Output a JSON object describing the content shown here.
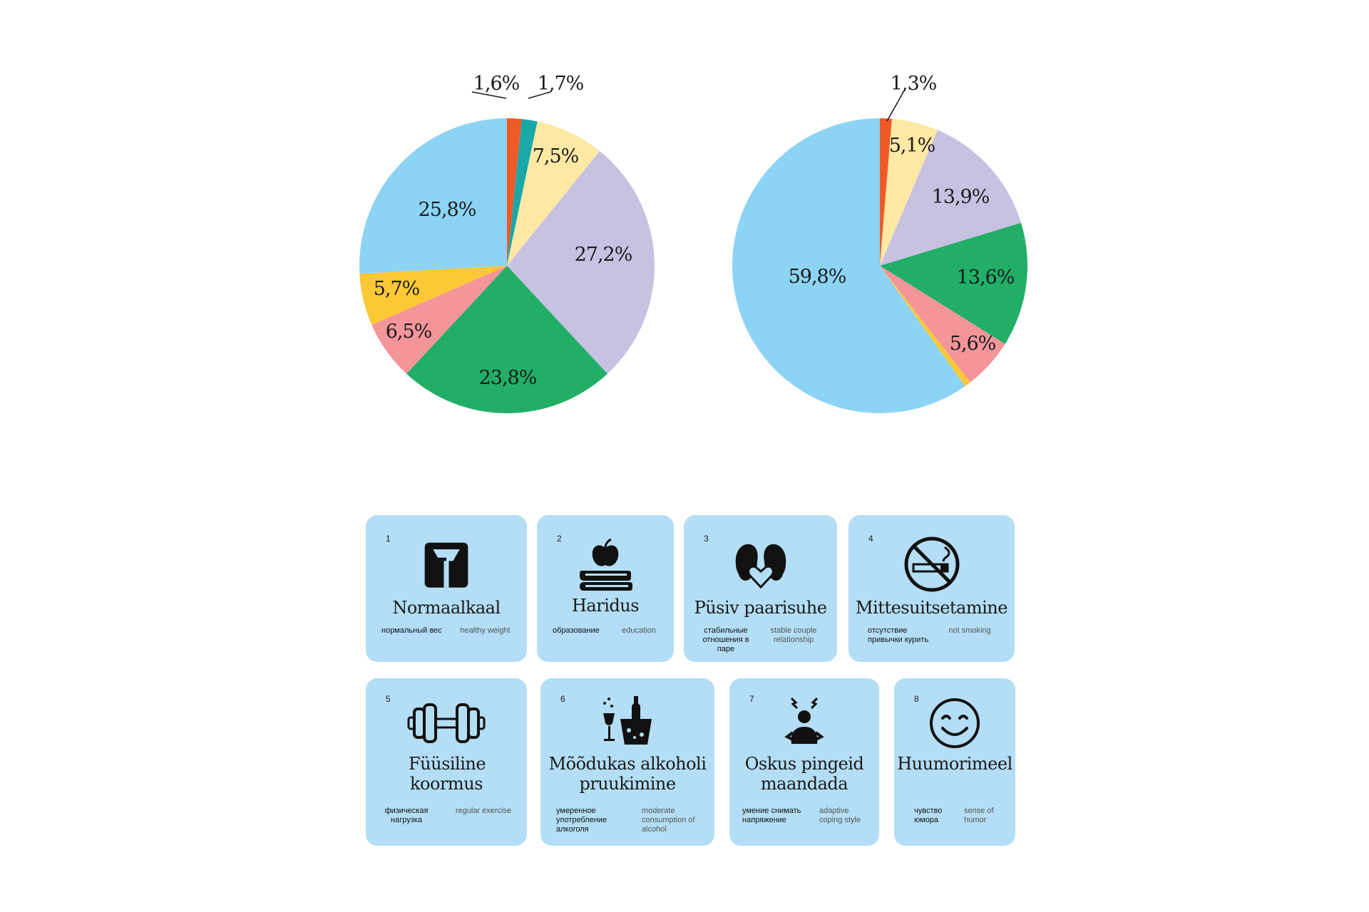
{
  "chart_data": [
    {
      "type": "pie",
      "values": [
        1.6,
        1.7,
        7.5,
        27.2,
        23.8,
        6.5,
        5.7,
        25.8
      ],
      "labels": [
        "1,6%",
        "1,7%",
        "7,5%",
        "27,2%",
        "23,8%",
        "6,5%",
        "5,7%",
        "25,8%"
      ],
      "colors": [
        "#f05a28",
        "#1aa7a8",
        "#fde8a4",
        "#c7c1e2",
        "#22ae67",
        "#f4959a",
        "#fdc836",
        "#8dd3f4"
      ],
      "start": "12 o'clock, clockwise"
    },
    {
      "type": "pie",
      "values": [
        1.3,
        5.1,
        13.9,
        13.6,
        5.6,
        0.7,
        59.8
      ],
      "labels": [
        "1,3%",
        "5,1%",
        "13,9%",
        "13,6%",
        "5,6%",
        "",
        "59,8%"
      ],
      "colors": [
        "#f05a28",
        "#fde8a4",
        "#c7c1e2",
        "#22ae67",
        "#f4959a",
        "#fdc836",
        "#8dd3f4"
      ],
      "start": "12 o'clock, clockwise"
    }
  ],
  "cards": [
    {
      "num": "1",
      "icon": "scale-icon",
      "title": "Normaalkaal",
      "ru": "нормальный вес",
      "en": "healthy weight"
    },
    {
      "num": "2",
      "icon": "apple-book-icon",
      "title": "Haridus",
      "ru": "образование",
      "en": "education"
    },
    {
      "num": "3",
      "icon": "couple-heart-icon",
      "title": "Püsiv paarisuhe",
      "ru": "стабильные отношения в паре",
      "en": "stable couple relationship"
    },
    {
      "num": "4",
      "icon": "no-smoking-icon",
      "title": "Mittesuitsetamine",
      "ru": "отсутствие привычки курить",
      "en": "not smoking"
    },
    {
      "num": "5",
      "icon": "dumbbell-icon",
      "title": "Füüsiline koormus",
      "ru": "физическая нагрузка",
      "en": "regular exercise"
    },
    {
      "num": "6",
      "icon": "champagne-icon",
      "title": "Mõõdukas alkoholi pruukimine",
      "ru": "умеренное употребление алкоголя",
      "en": "moderate consumption of alcohol"
    },
    {
      "num": "7",
      "icon": "stressed-person-icon",
      "title": "Oskus pingeid maandada",
      "ru": "умение снимать напряжение",
      "en": "adaptive coping style"
    },
    {
      "num": "8",
      "icon": "smiley-face-icon",
      "title": "Huumorimeel",
      "ru": "чувство юмора",
      "en": "sense of humor"
    }
  ]
}
